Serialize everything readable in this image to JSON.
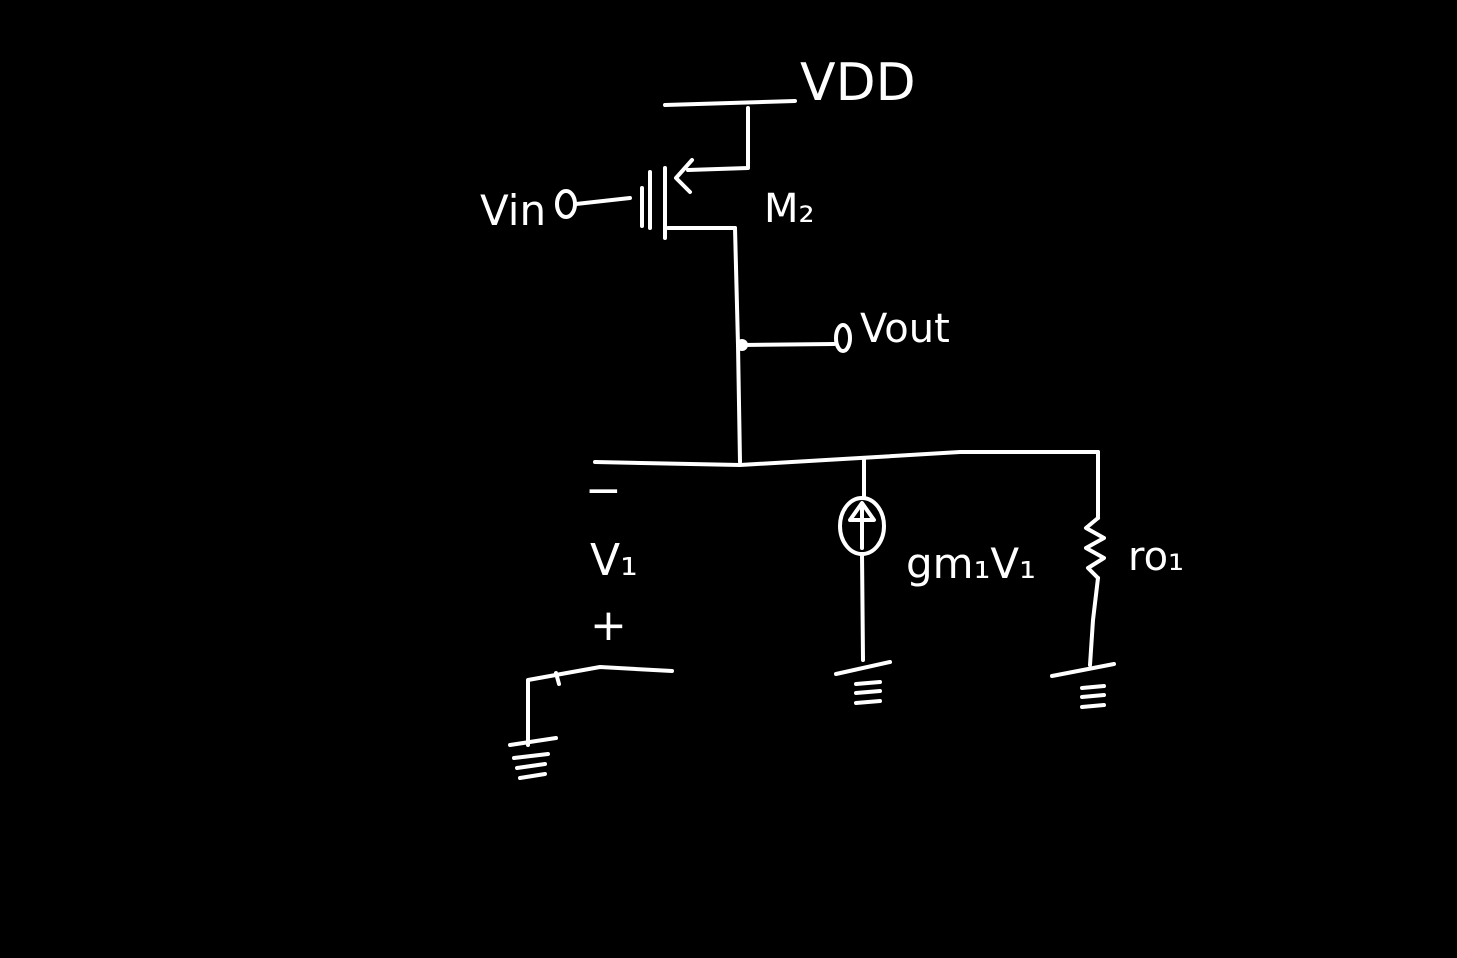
{
  "colors": {
    "background": "#000000",
    "ink": "#ffffff"
  },
  "labels": {
    "vdd": "VDD",
    "vin": "Vin",
    "m2": "M₂",
    "vout": "Vout",
    "v1_minus": "−",
    "v1": "V₁",
    "v1_plus": "+",
    "gm_source": "gm₁V₁",
    "ro": "ro₁"
  },
  "icons": {
    "ground": "ground-icon",
    "current_source": "current-source-icon",
    "resistor": "resistor-icon",
    "pmos": "pmos-transistor-icon"
  }
}
